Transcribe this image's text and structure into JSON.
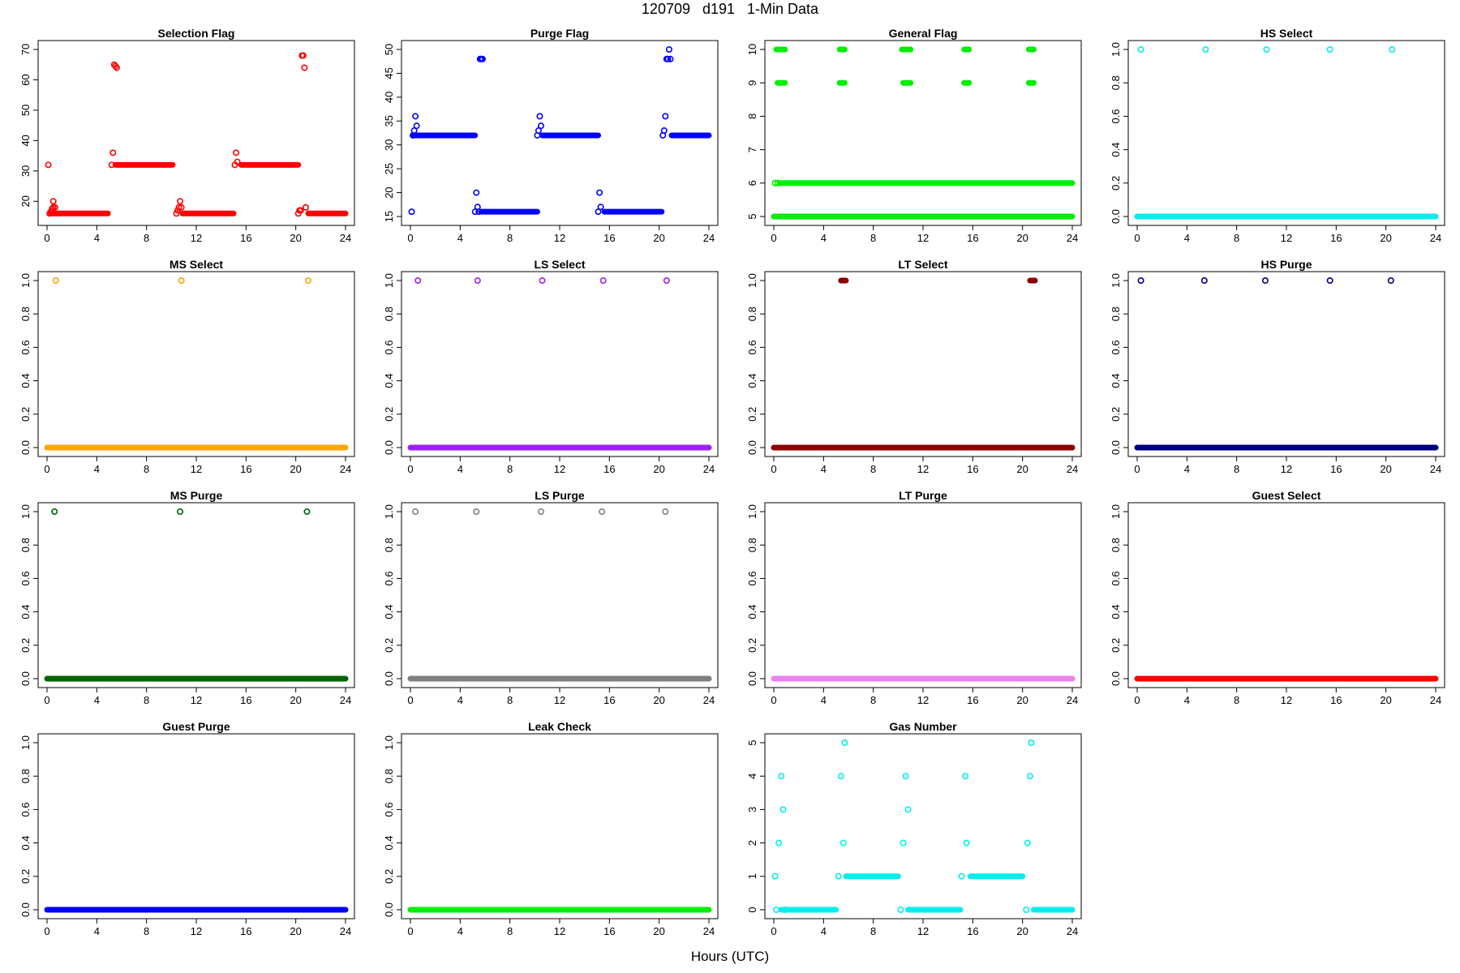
{
  "page_title": "120709   d191   1-Min Data",
  "x_axis_label": "Hours (UTC)",
  "chart_data": [
    {
      "type": "scatter",
      "title": "Selection Flag",
      "color": "#ff0000",
      "xlim": [
        0,
        24
      ],
      "ylim": [
        15,
        70
      ],
      "xticks": [
        "0",
        "4",
        "8",
        "12",
        "16",
        "20",
        "24"
      ],
      "yticks": [
        "20",
        "30",
        "40",
        "50",
        "60",
        "70"
      ],
      "segments": [
        [
          0.3,
          16,
          4.9,
          16
        ],
        [
          5.5,
          32,
          10.1,
          32
        ],
        [
          10.9,
          16,
          15,
          16
        ],
        [
          15.6,
          32,
          20.2,
          32
        ],
        [
          21,
          16,
          24,
          16
        ]
      ],
      "points": [
        [
          0.1,
          32
        ],
        [
          0.2,
          16
        ],
        [
          0.3,
          16.5
        ],
        [
          0.4,
          17.5
        ],
        [
          0.5,
          18
        ],
        [
          0.5,
          20
        ],
        [
          0.65,
          18
        ],
        [
          5.2,
          32
        ],
        [
          5.3,
          36
        ],
        [
          5.4,
          65
        ],
        [
          5.5,
          64.5
        ],
        [
          5.6,
          64
        ],
        [
          10.4,
          16
        ],
        [
          10.5,
          17
        ],
        [
          10.6,
          18
        ],
        [
          10.7,
          20
        ],
        [
          10.8,
          18
        ],
        [
          15.1,
          32
        ],
        [
          15.2,
          36
        ],
        [
          15.3,
          33
        ],
        [
          20.2,
          16
        ],
        [
          20.3,
          17
        ],
        [
          20.4,
          17
        ],
        [
          20.5,
          68
        ],
        [
          20.6,
          68
        ],
        [
          20.7,
          64
        ],
        [
          20.8,
          18
        ]
      ]
    },
    {
      "type": "scatter",
      "title": "Purge Flag",
      "color": "#0000ff",
      "xlim": [
        0,
        24
      ],
      "ylim": [
        15,
        50
      ],
      "xticks": [
        "0",
        "4",
        "8",
        "12",
        "16",
        "20",
        "24"
      ],
      "yticks": [
        "15",
        "20",
        "25",
        "30",
        "35",
        "40",
        "45",
        "50"
      ],
      "segments": [
        [
          0.2,
          32,
          5.2,
          32
        ],
        [
          5.7,
          16,
          10.2,
          16
        ],
        [
          10.6,
          32,
          15.1,
          32
        ],
        [
          15.6,
          16,
          20.2,
          16
        ],
        [
          21,
          32,
          24,
          32
        ]
      ],
      "points": [
        [
          0.1,
          16
        ],
        [
          0.2,
          32
        ],
        [
          0.3,
          33
        ],
        [
          0.4,
          36
        ],
        [
          0.5,
          34
        ],
        [
          5.2,
          16
        ],
        [
          5.3,
          20
        ],
        [
          5.4,
          17
        ],
        [
          5.5,
          16
        ],
        [
          5.6,
          48
        ],
        [
          5.7,
          48
        ],
        [
          5.8,
          48
        ],
        [
          10.2,
          32
        ],
        [
          10.3,
          33
        ],
        [
          10.4,
          36
        ],
        [
          10.5,
          34
        ],
        [
          15.1,
          16
        ],
        [
          15.2,
          20
        ],
        [
          15.3,
          17
        ],
        [
          20.3,
          32
        ],
        [
          20.4,
          33
        ],
        [
          20.5,
          36
        ],
        [
          20.6,
          48
        ],
        [
          20.7,
          48
        ],
        [
          20.8,
          50
        ],
        [
          20.9,
          48
        ]
      ]
    },
    {
      "type": "scatter",
      "title": "General Flag",
      "color": "#00ee00",
      "xlim": [
        0,
        24
      ],
      "ylim": [
        5,
        10
      ],
      "xticks": [
        "0",
        "4",
        "8",
        "12",
        "16",
        "20",
        "24"
      ],
      "yticks": [
        "5",
        "6",
        "7",
        "8",
        "9",
        "10"
      ],
      "segments": [
        [
          0,
          5,
          24,
          5
        ],
        [
          0.5,
          6,
          24,
          6
        ],
        [
          0.2,
          10,
          0.9,
          10
        ],
        [
          5.3,
          10,
          5.7,
          10
        ],
        [
          10.3,
          10,
          11,
          10
        ],
        [
          15.3,
          10,
          15.7,
          10
        ],
        [
          20.5,
          10,
          20.9,
          10
        ],
        [
          0.3,
          9,
          0.9,
          9
        ],
        [
          5.3,
          9,
          5.7,
          9
        ],
        [
          10.4,
          9,
          11,
          9
        ],
        [
          15.3,
          9,
          15.7,
          9
        ],
        [
          20.5,
          9,
          20.9,
          9
        ]
      ],
      "points": [
        [
          0.1,
          6
        ],
        [
          0.3,
          6
        ]
      ]
    },
    {
      "type": "scatter",
      "title": "HS Select",
      "color": "#00eeee",
      "xlim": [
        0,
        24
      ],
      "ylim": [
        0,
        1
      ],
      "xticks": [
        "0",
        "4",
        "8",
        "12",
        "16",
        "20",
        "24"
      ],
      "yticks": [
        "0.0",
        "0.2",
        "0.4",
        "0.6",
        "0.8",
        "1.0"
      ],
      "segments": [
        [
          0,
          0,
          24,
          0
        ]
      ],
      "points": [
        [
          0.3,
          1
        ],
        [
          5.5,
          1
        ],
        [
          10.4,
          1
        ],
        [
          15.5,
          1
        ],
        [
          20.5,
          1
        ]
      ]
    },
    {
      "type": "scatter",
      "title": "MS Select",
      "color": "#ffa500",
      "xlim": [
        0,
        24
      ],
      "ylim": [
        0,
        1
      ],
      "xticks": [
        "0",
        "4",
        "8",
        "12",
        "16",
        "20",
        "24"
      ],
      "yticks": [
        "0.0",
        "0.2",
        "0.4",
        "0.6",
        "0.8",
        "1.0"
      ],
      "segments": [
        [
          0,
          0,
          24,
          0
        ]
      ],
      "points": [
        [
          0.7,
          1
        ],
        [
          10.8,
          1
        ],
        [
          21,
          1
        ]
      ]
    },
    {
      "type": "scatter",
      "title": "LS Select",
      "color": "#a020f0",
      "xlim": [
        0,
        24
      ],
      "ylim": [
        0,
        1
      ],
      "xticks": [
        "0",
        "4",
        "8",
        "12",
        "16",
        "20",
        "24"
      ],
      "yticks": [
        "0.0",
        "0.2",
        "0.4",
        "0.6",
        "0.8",
        "1.0"
      ],
      "segments": [
        [
          0,
          0,
          24,
          0
        ]
      ],
      "points": [
        [
          0.6,
          1
        ],
        [
          5.4,
          1
        ],
        [
          10.6,
          1
        ],
        [
          15.5,
          1
        ],
        [
          20.6,
          1
        ]
      ]
    },
    {
      "type": "scatter",
      "title": "LT Select",
      "color": "#8b0000",
      "xlim": [
        0,
        24
      ],
      "ylim": [
        0,
        1
      ],
      "xticks": [
        "0",
        "4",
        "8",
        "12",
        "16",
        "20",
        "24"
      ],
      "yticks": [
        "0.0",
        "0.2",
        "0.4",
        "0.6",
        "0.8",
        "1.0"
      ],
      "segments": [
        [
          0,
          0,
          24,
          0
        ],
        [
          5.4,
          1,
          5.8,
          1
        ],
        [
          20.6,
          1,
          21,
          1
        ]
      ],
      "points": []
    },
    {
      "type": "scatter",
      "title": "HS Purge",
      "color": "#000080",
      "xlim": [
        0,
        24
      ],
      "ylim": [
        0,
        1
      ],
      "xticks": [
        "0",
        "4",
        "8",
        "12",
        "16",
        "20",
        "24"
      ],
      "yticks": [
        "0.0",
        "0.2",
        "0.4",
        "0.6",
        "0.8",
        "1.0"
      ],
      "segments": [
        [
          0,
          0,
          24,
          0
        ]
      ],
      "points": [
        [
          0.3,
          1
        ],
        [
          5.4,
          1
        ],
        [
          10.3,
          1
        ],
        [
          15.5,
          1
        ],
        [
          20.4,
          1
        ]
      ]
    },
    {
      "type": "scatter",
      "title": "MS Purge",
      "color": "#006400",
      "xlim": [
        0,
        24
      ],
      "ylim": [
        0,
        1
      ],
      "xticks": [
        "0",
        "4",
        "8",
        "12",
        "16",
        "20",
        "24"
      ],
      "yticks": [
        "0.0",
        "0.2",
        "0.4",
        "0.6",
        "0.8",
        "1.0"
      ],
      "segments": [
        [
          0,
          0,
          24,
          0
        ]
      ],
      "points": [
        [
          0.6,
          1
        ],
        [
          10.7,
          1
        ],
        [
          20.9,
          1
        ]
      ]
    },
    {
      "type": "scatter",
      "title": "LS Purge",
      "color": "#808080",
      "xlim": [
        0,
        24
      ],
      "ylim": [
        0,
        1
      ],
      "xticks": [
        "0",
        "4",
        "8",
        "12",
        "16",
        "20",
        "24"
      ],
      "yticks": [
        "0.0",
        "0.2",
        "0.4",
        "0.6",
        "0.8",
        "1.0"
      ],
      "segments": [
        [
          0,
          0,
          24,
          0
        ]
      ],
      "points": [
        [
          0.4,
          1
        ],
        [
          5.3,
          1
        ],
        [
          10.5,
          1
        ],
        [
          15.4,
          1
        ],
        [
          20.5,
          1
        ]
      ]
    },
    {
      "type": "scatter",
      "title": "LT Purge",
      "color": "#ee82ee",
      "xlim": [
        0,
        24
      ],
      "ylim": [
        0,
        1
      ],
      "xticks": [
        "0",
        "4",
        "8",
        "12",
        "16",
        "20",
        "24"
      ],
      "yticks": [
        "0.0",
        "0.2",
        "0.4",
        "0.6",
        "0.8",
        "1.0"
      ],
      "segments": [
        [
          0,
          0,
          24,
          0
        ]
      ],
      "points": []
    },
    {
      "type": "scatter",
      "title": "Guest Select",
      "color": "#ff0000",
      "xlim": [
        0,
        24
      ],
      "ylim": [
        0,
        1
      ],
      "xticks": [
        "0",
        "4",
        "8",
        "12",
        "16",
        "20",
        "24"
      ],
      "yticks": [
        "0.0",
        "0.2",
        "0.4",
        "0.6",
        "0.8",
        "1.0"
      ],
      "segments": [
        [
          0,
          0,
          24,
          0
        ]
      ],
      "points": []
    },
    {
      "type": "scatter",
      "title": "Guest Purge",
      "color": "#0000ff",
      "xlim": [
        0,
        24
      ],
      "ylim": [
        0,
        1
      ],
      "xticks": [
        "0",
        "4",
        "8",
        "12",
        "16",
        "20",
        "24"
      ],
      "yticks": [
        "0.0",
        "0.2",
        "0.4",
        "0.6",
        "0.8",
        "1.0"
      ],
      "segments": [
        [
          0,
          0,
          24,
          0
        ]
      ],
      "points": []
    },
    {
      "type": "scatter",
      "title": "Leak Check",
      "color": "#00ee00",
      "xlim": [
        0,
        24
      ],
      "ylim": [
        0,
        1
      ],
      "xticks": [
        "0",
        "4",
        "8",
        "12",
        "16",
        "20",
        "24"
      ],
      "yticks": [
        "0.0",
        "0.2",
        "0.4",
        "0.6",
        "0.8",
        "1.0"
      ],
      "segments": [
        [
          0,
          0,
          24,
          0
        ]
      ],
      "points": []
    },
    {
      "type": "scatter",
      "title": "Gas Number",
      "color": "#00eeee",
      "xlim": [
        0,
        24
      ],
      "ylim": [
        0,
        5
      ],
      "xticks": [
        "0",
        "4",
        "8",
        "12",
        "16",
        "20",
        "24"
      ],
      "yticks": [
        "0",
        "1",
        "2",
        "3",
        "4",
        "5"
      ],
      "segments": [
        [
          0.6,
          0,
          5,
          0
        ],
        [
          5.8,
          1,
          10,
          1
        ],
        [
          10.8,
          0,
          15,
          0
        ],
        [
          15.8,
          1,
          20,
          1
        ],
        [
          20.9,
          0,
          24,
          0
        ]
      ],
      "points": [
        [
          0.1,
          1
        ],
        [
          0.2,
          0
        ],
        [
          0.4,
          2
        ],
        [
          0.6,
          4
        ],
        [
          0.75,
          3
        ],
        [
          0.9,
          0
        ],
        [
          5.2,
          1
        ],
        [
          5.4,
          4
        ],
        [
          5.6,
          2
        ],
        [
          5.7,
          5
        ],
        [
          10.2,
          0
        ],
        [
          10.4,
          2
        ],
        [
          10.6,
          4
        ],
        [
          10.8,
          3
        ],
        [
          15.1,
          1
        ],
        [
          15.4,
          4
        ],
        [
          15.5,
          2
        ],
        [
          20.3,
          0
        ],
        [
          20.4,
          2
        ],
        [
          20.6,
          4
        ],
        [
          20.7,
          5
        ]
      ]
    }
  ]
}
